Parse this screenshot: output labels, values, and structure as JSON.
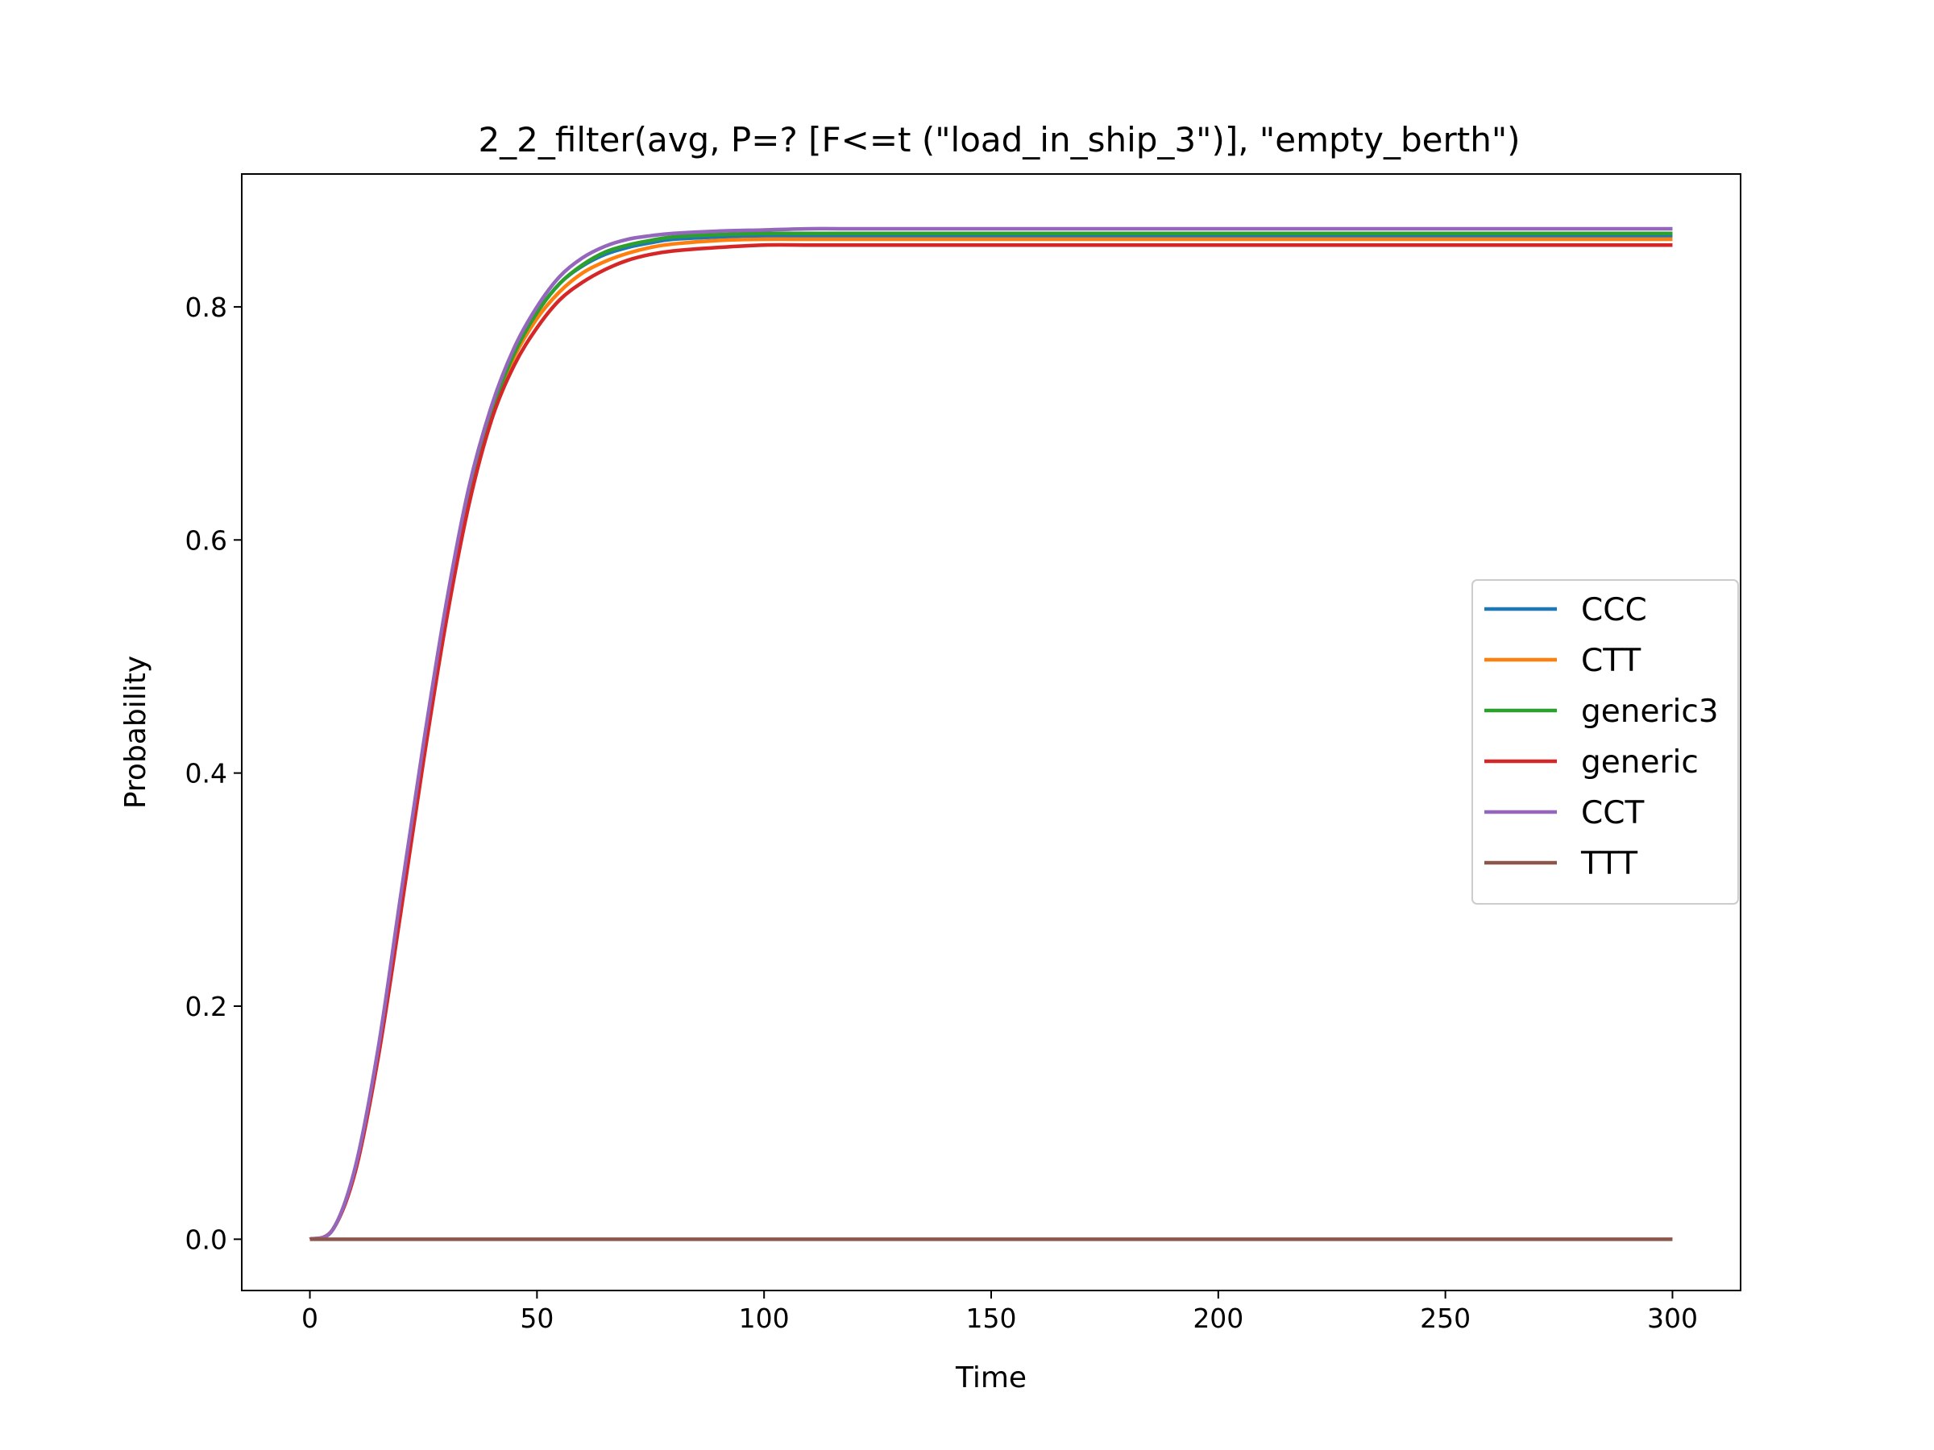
{
  "chart_data": {
    "type": "line",
    "title": "2_2_filter(avg, P=? [F<=t (\"load_in_ship_3\")], \"empty_berth\")",
    "xlabel": "Time",
    "ylabel": "Probability",
    "xlim": [
      -15,
      315
    ],
    "ylim": [
      -0.044,
      0.914
    ],
    "xticks": [
      0,
      50,
      100,
      150,
      200,
      250,
      300
    ],
    "yticks": [
      0.0,
      0.2,
      0.4,
      0.6,
      0.8
    ],
    "ytick_labels": [
      "0.0",
      "0.2",
      "0.4",
      "0.6",
      "0.8"
    ],
    "grid": false,
    "legend_position": "center-right",
    "x": [
      0,
      5,
      10,
      15,
      20,
      25,
      30,
      35,
      40,
      45,
      50,
      55,
      60,
      65,
      70,
      75,
      80,
      90,
      100,
      110,
      120,
      130,
      150,
      200,
      250,
      300
    ],
    "series": [
      {
        "name": "CCC",
        "color": "#1f77b4",
        "values": [
          0.0,
          0.008,
          0.06,
          0.16,
          0.29,
          0.42,
          0.54,
          0.64,
          0.71,
          0.76,
          0.795,
          0.82,
          0.835,
          0.845,
          0.851,
          0.855,
          0.858,
          0.86,
          0.861,
          0.861,
          0.861,
          0.861,
          0.861,
          0.861,
          0.861,
          0.861
        ]
      },
      {
        "name": "CTT",
        "color": "#ff7f0e",
        "values": [
          0.0,
          0.008,
          0.06,
          0.16,
          0.29,
          0.42,
          0.54,
          0.64,
          0.71,
          0.757,
          0.79,
          0.813,
          0.829,
          0.839,
          0.846,
          0.851,
          0.854,
          0.857,
          0.858,
          0.858,
          0.858,
          0.858,
          0.858,
          0.858,
          0.858,
          0.858
        ]
      },
      {
        "name": "generic3",
        "color": "#2ca02c",
        "values": [
          0.0,
          0.008,
          0.06,
          0.16,
          0.29,
          0.42,
          0.54,
          0.64,
          0.71,
          0.76,
          0.795,
          0.82,
          0.836,
          0.847,
          0.853,
          0.857,
          0.86,
          0.862,
          0.863,
          0.863,
          0.863,
          0.863,
          0.863,
          0.863,
          0.863,
          0.863
        ]
      },
      {
        "name": "generic",
        "color": "#d62728",
        "values": [
          0.0,
          0.008,
          0.058,
          0.155,
          0.28,
          0.41,
          0.53,
          0.63,
          0.703,
          0.75,
          0.782,
          0.806,
          0.821,
          0.832,
          0.84,
          0.845,
          0.848,
          0.851,
          0.853,
          0.853,
          0.853,
          0.853,
          0.853,
          0.853,
          0.853,
          0.853
        ]
      },
      {
        "name": "CCT",
        "color": "#9467bd",
        "values": [
          0.0,
          0.008,
          0.062,
          0.163,
          0.295,
          0.425,
          0.545,
          0.645,
          0.715,
          0.765,
          0.8,
          0.826,
          0.842,
          0.852,
          0.858,
          0.861,
          0.863,
          0.865,
          0.866,
          0.867,
          0.867,
          0.867,
          0.867,
          0.867,
          0.867,
          0.867
        ]
      },
      {
        "name": "TTT",
        "color": "#8c564b",
        "values": [
          0.0,
          0.0,
          0.0,
          0.0,
          0.0,
          0.0,
          0.0,
          0.0,
          0.0,
          0.0,
          0.0,
          0.0,
          0.0,
          0.0,
          0.0,
          0.0,
          0.0,
          0.0,
          0.0,
          0.0,
          0.0,
          0.0,
          0.0,
          0.0,
          0.0,
          0.0
        ]
      }
    ]
  }
}
